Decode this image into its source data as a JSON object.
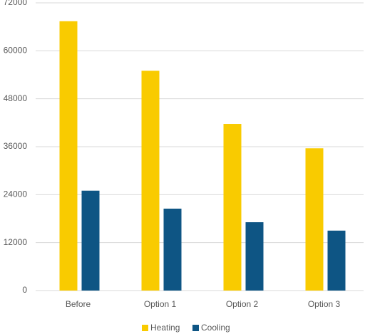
{
  "chart_data": {
    "type": "bar",
    "categories": [
      "Before",
      "Option 1",
      "Option 2",
      "Option 3"
    ],
    "series": [
      {
        "name": "Heating",
        "color": "#f9cb00",
        "values": [
          67400,
          55000,
          41700,
          35600
        ]
      },
      {
        "name": "Cooling",
        "color": "#0e5584",
        "values": [
          25000,
          20500,
          17100,
          15000
        ]
      }
    ],
    "ylim": [
      0,
      72000
    ],
    "yticks": [
      0,
      12000,
      24000,
      36000,
      48000,
      60000,
      72000
    ],
    "grid": true,
    "legend": "bottom"
  }
}
